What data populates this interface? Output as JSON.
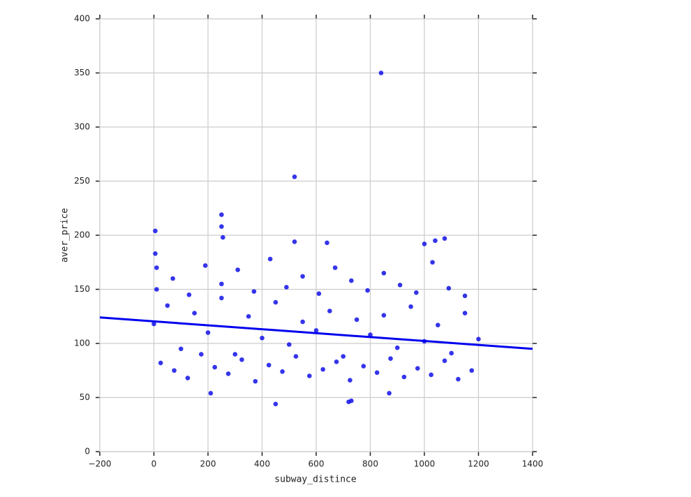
{
  "chart_data": {
    "type": "scatter",
    "x_label": "subway_distince",
    "y_label": "aver_price",
    "x": [
      0,
      50,
      100,
      150,
      200,
      250,
      300,
      350,
      400,
      450,
      500,
      550,
      600,
      650,
      700,
      750,
      800,
      850,
      900,
      950,
      1000,
      1050,
      1100,
      1150,
      1200,
      25,
      75,
      125,
      175,
      225,
      275,
      325,
      375,
      425,
      475,
      525,
      575,
      625,
      675,
      725,
      775,
      825,
      875,
      925,
      975,
      1025,
      1075,
      1125,
      1175,
      10,
      70,
      130,
      190,
      250,
      310,
      370,
      430,
      490,
      550,
      610,
      670,
      730,
      790,
      850,
      910,
      970,
      1030,
      1090,
      1150,
      840,
      520,
      250,
      5,
      250,
      640,
      1075,
      1040,
      1000,
      520,
      450,
      720,
      730,
      210,
      870,
      5,
      10,
      255
    ],
    "values": [
      118,
      135,
      95,
      128,
      110,
      142,
      90,
      125,
      105,
      138,
      99,
      120,
      112,
      130,
      88,
      122,
      108,
      126,
      96,
      134,
      102,
      117,
      91,
      128,
      104,
      82,
      75,
      68,
      90,
      78,
      72,
      85,
      65,
      80,
      74,
      88,
      70,
      76,
      83,
      66,
      79,
      73,
      86,
      69,
      77,
      71,
      84,
      67,
      75,
      150,
      160,
      145,
      172,
      155,
      168,
      148,
      178,
      152,
      162,
      146,
      170,
      158,
      149,
      165,
      154,
      147,
      175,
      151,
      144,
      350,
      254,
      219,
      204,
      208,
      193,
      197,
      195,
      192,
      194,
      44,
      46,
      47,
      54,
      54,
      183,
      170,
      198
    ],
    "color": "#1010e8",
    "regression": {
      "x": [
        -200,
        1400
      ],
      "values": [
        124,
        95
      ],
      "color": "#0000ee"
    },
    "xlim": [
      -200,
      1400
    ],
    "xticks": [
      {
        "value": -200,
        "label": "−200"
      },
      0,
      200,
      400,
      600,
      800,
      1000,
      1200,
      1400
    ],
    "ylim": [
      0,
      400
    ],
    "yticks": [
      0,
      50,
      100,
      150,
      200,
      250,
      300,
      350,
      400
    ],
    "grid": true
  }
}
